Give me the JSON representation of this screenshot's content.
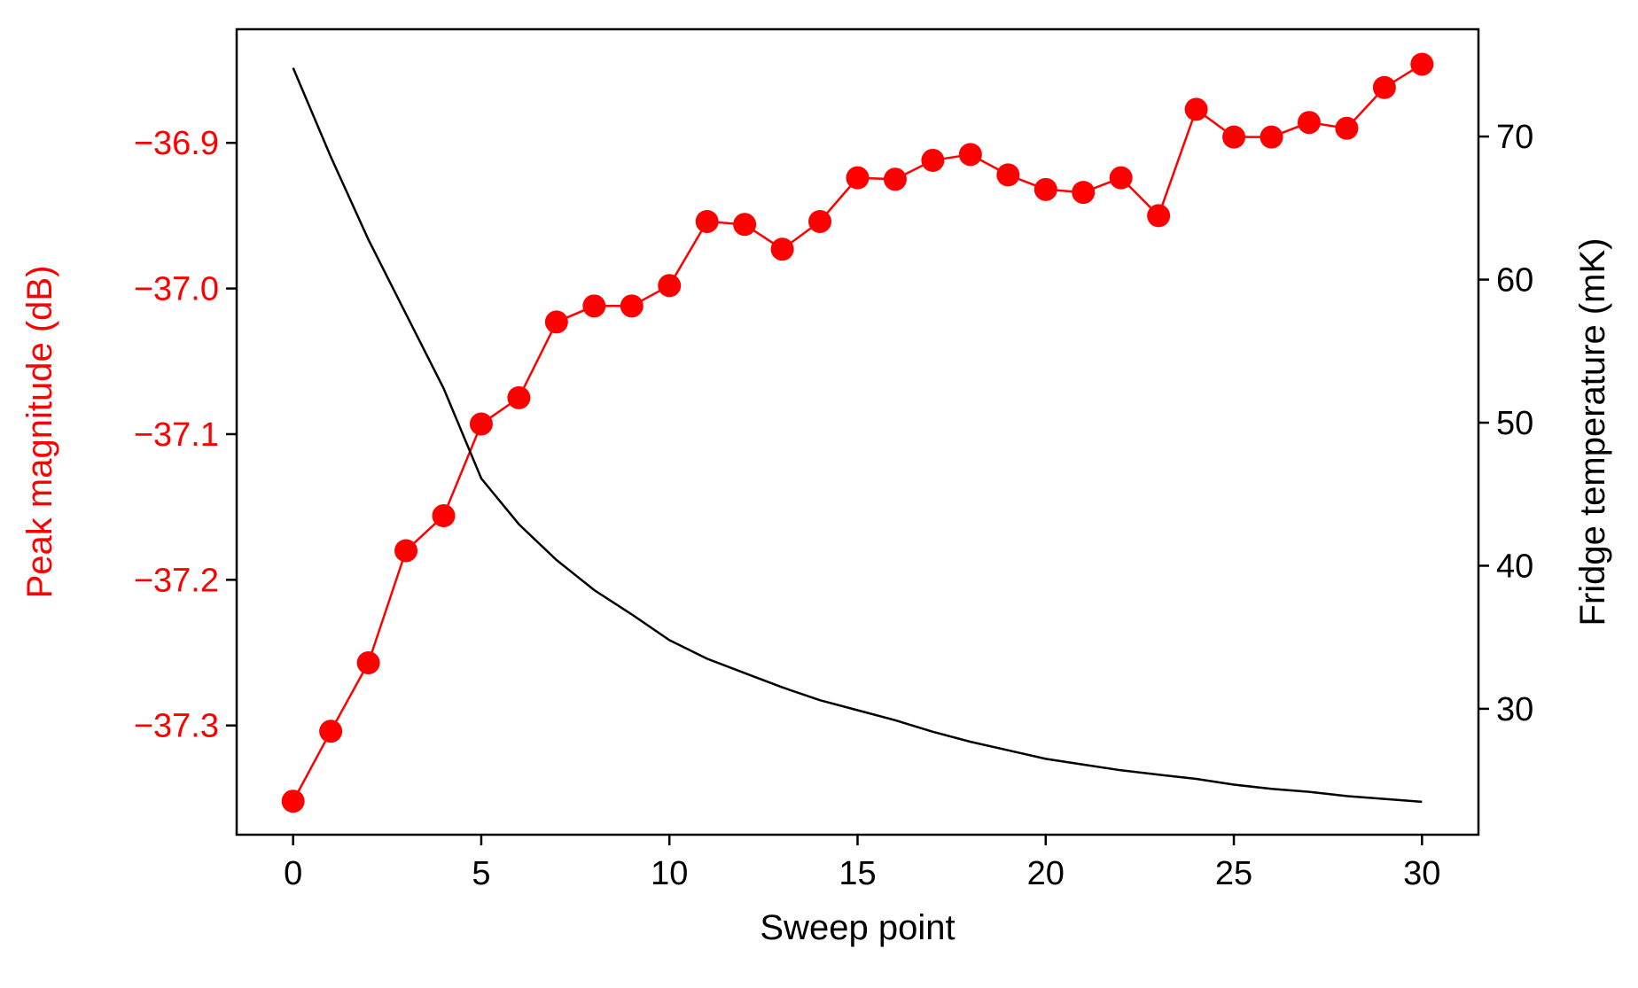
{
  "chart_data": {
    "type": "line",
    "xlabel": "Sweep point",
    "ylabel_left": "Peak magnitude (dB)",
    "ylabel_right": "Fridge temperature (mK)",
    "xlim": [
      -1.5,
      31.5
    ],
    "ylim_left": [
      -37.375,
      -36.822
    ],
    "ylim_right": [
      21.2,
      77.5
    ],
    "xticks": [
      0,
      5,
      10,
      15,
      20,
      25,
      30
    ],
    "yticks_left": [
      -37.3,
      -37.2,
      -37.1,
      -37.0,
      -36.9
    ],
    "yticks_right": [
      30,
      40,
      50,
      60,
      70
    ],
    "grid": false,
    "x": [
      0,
      1,
      2,
      3,
      4,
      5,
      6,
      7,
      8,
      9,
      10,
      11,
      12,
      13,
      14,
      15,
      16,
      17,
      18,
      19,
      20,
      21,
      22,
      23,
      24,
      25,
      26,
      27,
      28,
      29,
      30
    ],
    "series": [
      {
        "axis": "left",
        "color": "#ff0000",
        "marker": "circle",
        "values": [
          -37.352,
          -37.304,
          -37.257,
          -37.18,
          -37.156,
          -37.093,
          -37.075,
          -37.023,
          -37.012,
          -37.012,
          -36.998,
          -36.954,
          -36.956,
          -36.973,
          -36.954,
          -36.924,
          -36.925,
          -36.912,
          -36.908,
          -36.922,
          -36.932,
          -36.934,
          -36.924,
          -36.95,
          -36.877,
          -36.896,
          -36.896,
          -36.886,
          -36.89,
          -36.862,
          -36.846
        ]
      },
      {
        "axis": "right",
        "color": "#000000",
        "marker": "none",
        "values": [
          74.8,
          68.6,
          62.8,
          57.6,
          52.4,
          46.1,
          42.9,
          40.4,
          38.3,
          36.6,
          34.8,
          33.5,
          32.5,
          31.5,
          30.6,
          29.9,
          29.2,
          28.4,
          27.7,
          27.1,
          26.5,
          26.1,
          25.7,
          25.4,
          25.1,
          24.7,
          24.4,
          24.2,
          23.9,
          23.7,
          23.5
        ]
      }
    ]
  }
}
